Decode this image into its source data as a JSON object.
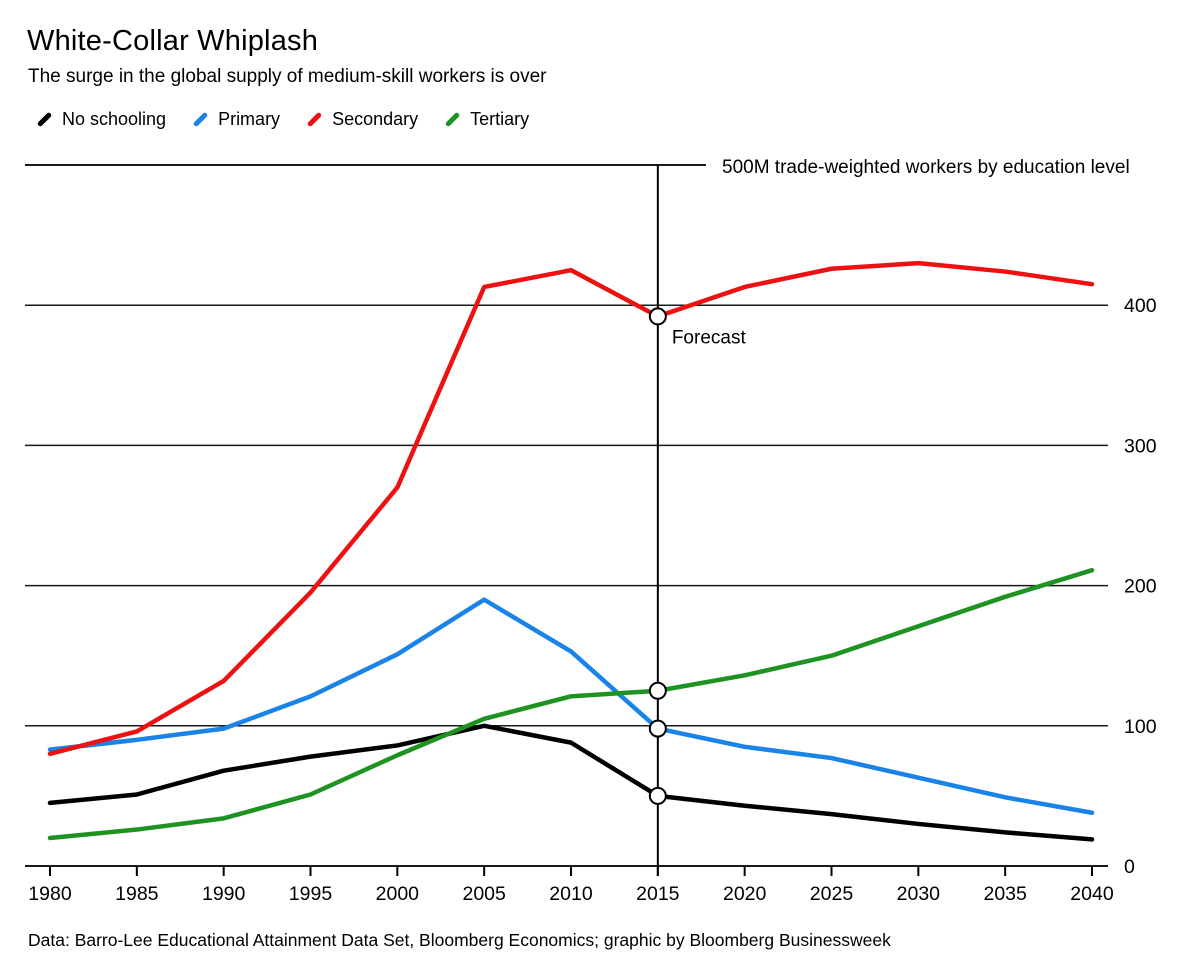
{
  "page": {
    "title": "White-Collar Whiplash",
    "subtitle": "The surge in the global supply of medium-skill workers is over",
    "source": "Data: Barro-Lee Educational Attainment Data Set, Bloomberg Economics; graphic by Bloomberg Businessweek"
  },
  "colors": {
    "background": "#ffffff",
    "grid": "#1a1a1a",
    "axis": "#000000",
    "no_schooling": "#000000",
    "primary": "#1a83e8",
    "secondary": "#ee1111",
    "tertiary": "#1e9321"
  },
  "chart_data": {
    "type": "line",
    "title": "White-Collar Whiplash",
    "subtitle": "The surge in the global supply of medium-skill workers is over",
    "x": [
      1980,
      1985,
      1990,
      1995,
      2000,
      2005,
      2010,
      2015,
      2020,
      2025,
      2030,
      2035,
      2040
    ],
    "x_tick_labels": [
      "1980",
      "1985",
      "1990",
      "1995",
      "2000",
      "2005",
      "2010",
      "2015",
      "2020",
      "2025",
      "2030",
      "2035",
      "2040"
    ],
    "y_axis": {
      "range": [
        0,
        500
      ],
      "ticks": [
        {
          "value": 0,
          "label": "0"
        },
        {
          "value": 100,
          "label": "100"
        },
        {
          "value": 200,
          "label": "200"
        },
        {
          "value": 300,
          "label": "300"
        },
        {
          "value": 400,
          "label": "400"
        }
      ],
      "top": {
        "value": 500,
        "label": "500M trade-weighted workers by education level"
      }
    },
    "grid": "horizontal",
    "legend_position": "top",
    "series": [
      {
        "name": "No schooling",
        "color": "#000000",
        "values": [
          45,
          51,
          68,
          78,
          86,
          100,
          88,
          50,
          43,
          37,
          30,
          24,
          19
        ]
      },
      {
        "name": "Primary",
        "color": "#1a83e8",
        "values": [
          83,
          90,
          98,
          121,
          151,
          190,
          153,
          98,
          85,
          77,
          63,
          49,
          38
        ]
      },
      {
        "name": "Secondary",
        "color": "#ee1111",
        "values": [
          80,
          96,
          132,
          195,
          270,
          413,
          425,
          392,
          413,
          426,
          430,
          424,
          415
        ]
      },
      {
        "name": "Tertiary",
        "color": "#1e9321",
        "values": [
          20,
          26,
          34,
          51,
          79,
          105,
          121,
          125,
          136,
          150,
          171,
          192,
          211
        ]
      }
    ],
    "forecast": {
      "year": 2015,
      "label": "Forecast"
    }
  }
}
